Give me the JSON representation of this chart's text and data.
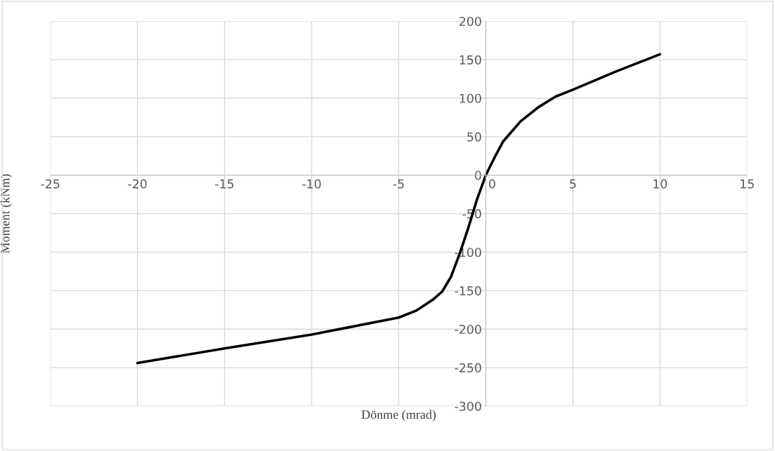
{
  "chart_data": {
    "type": "line",
    "xlabel": "Dönme (mrad)",
    "ylabel": "Moment (kNm)",
    "series": [
      {
        "color": "#000000",
        "x": [
          -20,
          -15,
          -10,
          -7.5,
          -5,
          -4,
          -3,
          -2.5,
          -2,
          -1.5,
          -1,
          -0.5,
          0,
          0.5,
          1,
          2,
          3,
          4,
          5,
          7.5,
          10
        ],
        "values": [
          -244,
          -225,
          -207,
          -196,
          -185,
          -176,
          -161,
          -151,
          -132,
          -102,
          -68,
          -31,
          0,
          23,
          44,
          70,
          88,
          102,
          111,
          135,
          157
        ]
      }
    ],
    "xlim": [
      -25,
      15
    ],
    "xticks": [
      -25,
      -20,
      -15,
      -10,
      -5,
      0,
      5,
      10,
      15
    ],
    "ylim": [
      -300,
      200
    ],
    "yticks": [
      -300,
      -250,
      -200,
      -150,
      -100,
      -50,
      0,
      50,
      100,
      150,
      200
    ],
    "grid": true,
    "marker": "none",
    "line_style": "solid"
  }
}
